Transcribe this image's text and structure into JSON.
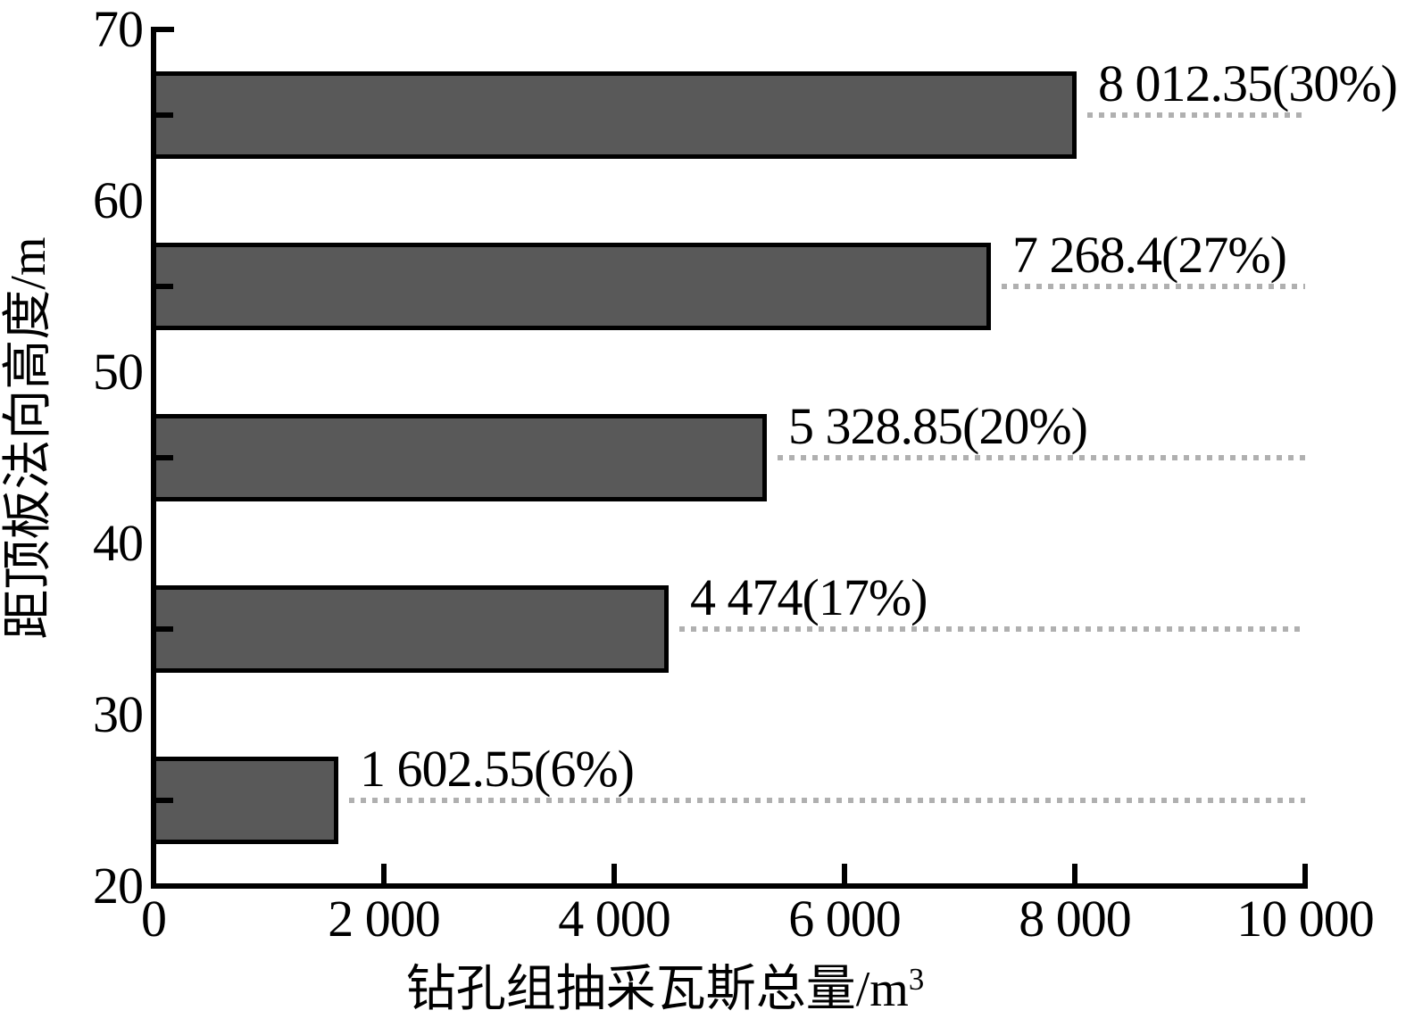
{
  "chart_data": {
    "type": "bar",
    "orientation": "horizontal",
    "title": "",
    "xlabel": "钻孔组抽采瓦斯总量/m³",
    "xlabel_base": "钻孔组抽采瓦斯总量/m",
    "xlabel_sup": "3",
    "ylabel": "距顶板法向高度/m",
    "series": [
      {
        "name": "钻孔组抽采瓦斯总量",
        "bar_centers_m": [
          65,
          55,
          45,
          35,
          25
        ],
        "values_m3": [
          8012.35,
          7268.4,
          5328.85,
          4474,
          1602.55
        ],
        "percentages": [
          30,
          27,
          20,
          17,
          6
        ],
        "value_labels": [
          "8 012.35(30%)",
          "7 268.4(27%)",
          "5 328.85(20%)",
          "4 474(17%)",
          "1 602.55(6%)"
        ]
      }
    ],
    "xlim": [
      0,
      10000
    ],
    "ylim": [
      20,
      70
    ],
    "x_tick_values": [
      2000,
      4000,
      6000,
      8000,
      10000
    ],
    "x_tick_labels": [
      "0",
      "2 000",
      "4 000",
      "6 000",
      "8 000",
      "10 000"
    ],
    "x_tick_label_values": [
      0,
      2000,
      4000,
      6000,
      8000,
      10000
    ],
    "y_tick_labels": [
      "70",
      "60",
      "50",
      "40",
      "30",
      "20"
    ],
    "y_tick_label_values": [
      70,
      60,
      50,
      40,
      30,
      20
    ],
    "bar_thickness_units": 5,
    "legend": "none",
    "grid": "none",
    "annotations": "dotted gray leader line from each bar end to right edge",
    "colors": {
      "bar_fill": "#595959",
      "bar_border": "#000000",
      "axis": "#000000",
      "leader_dots": "#b0b0b0",
      "text": "#000000",
      "background": "#ffffff"
    }
  }
}
